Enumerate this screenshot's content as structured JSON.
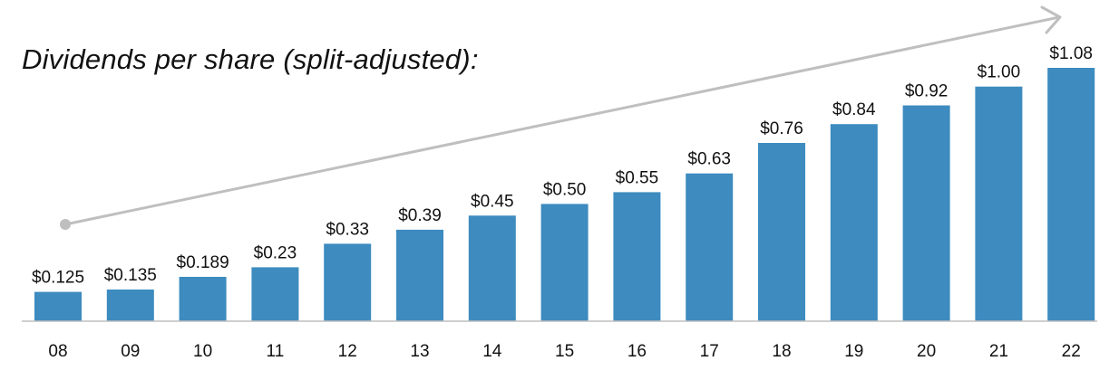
{
  "chart_data": {
    "type": "bar",
    "title": "Dividends per share (split-adjusted):",
    "xlabel": "",
    "ylabel": "",
    "categories": [
      "08",
      "09",
      "10",
      "11",
      "12",
      "13",
      "14",
      "15",
      "16",
      "17",
      "18",
      "19",
      "20",
      "21",
      "22"
    ],
    "values": [
      0.125,
      0.135,
      0.189,
      0.23,
      0.33,
      0.39,
      0.45,
      0.5,
      0.55,
      0.63,
      0.76,
      0.84,
      0.92,
      1.0,
      1.08
    ],
    "data_labels": [
      "$0.125",
      "$0.135",
      "$0.189",
      "$0.23",
      "$0.33",
      "$0.39",
      "$0.45",
      "$0.50",
      "$0.55",
      "$0.63",
      "$0.76",
      "$0.84",
      "$0.92",
      "$1.00",
      "$1.08"
    ],
    "ylim": [
      0,
      1.08
    ],
    "grid": false,
    "legend": "none",
    "bar_color": "#3d8bbf",
    "trend_arrow_color": "#bfbfbf",
    "axis_color": "#bfbfbf"
  }
}
